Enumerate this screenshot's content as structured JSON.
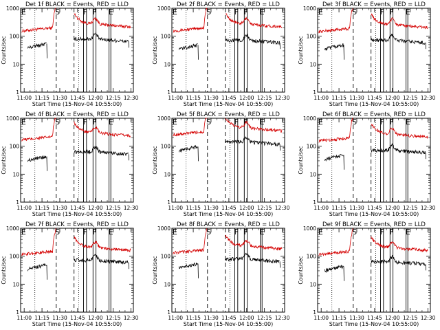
{
  "chart_data": {
    "type": "line",
    "shared": {
      "y_scale": "log",
      "ylim": [
        1,
        1000
      ],
      "y_ticks": [
        1,
        10,
        100,
        1000
      ],
      "y_tick_labels": [
        "1",
        "10",
        "100",
        "1000"
      ],
      "ylabel": "Counts/sec",
      "xlabel": "Start Time (15-Nov-04 10:55:00)",
      "x_units": "minutes after 11:00 UT",
      "xlim": [
        -3,
        92
      ],
      "x_ticks": [
        0,
        15,
        30,
        45,
        60,
        75,
        90
      ],
      "x_tick_labels": [
        "11:00",
        "11:15",
        "11:30",
        "11:45",
        "12:00",
        "12:15",
        "12:30"
      ],
      "series_colors": {
        "events": "#000000",
        "lld": "#d40000"
      },
      "dotted_markers": [
        9,
        46
      ],
      "dashed_markers": [
        27,
        42
      ],
      "solid_markers": [
        50,
        52.5,
        58,
        60.5,
        71.5,
        73
      ],
      "letters": [
        {
          "text": "E",
          "x": -2.5
        },
        {
          "text": "S",
          "x": 26
        },
        {
          "text": "F",
          "x": 49.5
        },
        {
          "text": "F",
          "x": 57.5
        },
        {
          "text": "E",
          "x": 71
        }
      ]
    },
    "panels": [
      {
        "title": "Det 1f BLACK = Events, RED = LLD",
        "lld_base": 200,
        "events_base": 50
      },
      {
        "title": "Det 2f BLACK = Events, RED = LLD",
        "lld_base": 200,
        "events_base": 45
      },
      {
        "title": "Det 3f BLACK = Events, RED = LLD",
        "lld_base": 190,
        "events_base": 45
      },
      {
        "title": "Det 4f BLACK = Events, RED = LLD",
        "lld_base": 220,
        "events_base": 40
      },
      {
        "title": "Det 5f BLACK = Events, RED = LLD",
        "lld_base": 330,
        "events_base": 90
      },
      {
        "title": "Det 6f BLACK = Events, RED = LLD",
        "lld_base": 200,
        "events_base": 45
      },
      {
        "title": "Det 7f BLACK = Events, RED = LLD",
        "lld_base": 150,
        "events_base": 45
      },
      {
        "title": "Det 8f BLACK = Events, RED = LLD",
        "lld_base": 170,
        "events_base": 50
      },
      {
        "title": "Det 9f BLACK = Events, RED = LLD",
        "lld_base": 150,
        "events_base": 40
      }
    ]
  }
}
